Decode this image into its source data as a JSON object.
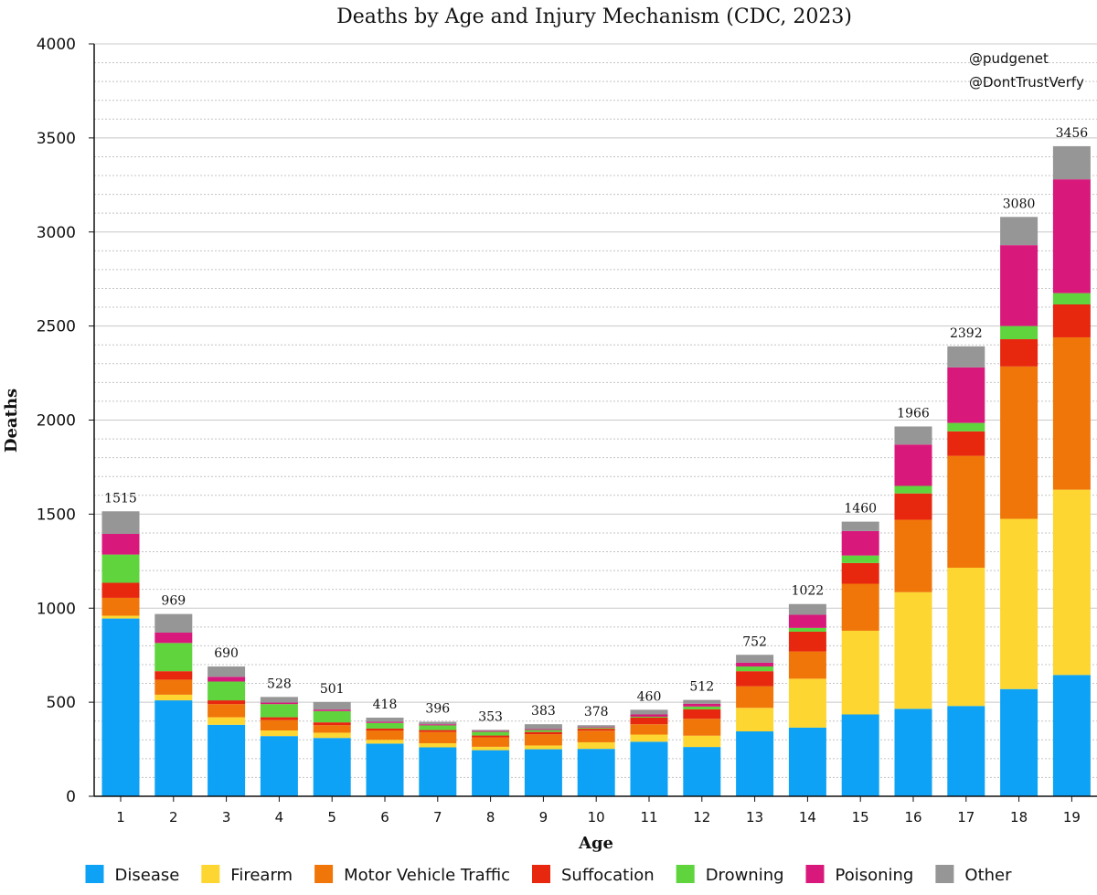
{
  "chart_data": {
    "type": "bar",
    "stacked": true,
    "title": "Deaths by Age and Injury Mechanism (CDC, 2023)",
    "xlabel": "Age",
    "ylabel": "Deaths",
    "ylim": [
      0,
      4000
    ],
    "yticks": [
      0,
      500,
      1000,
      1500,
      2000,
      2500,
      3000,
      3500,
      4000
    ],
    "grid": true,
    "legend_position": "bottom",
    "categories": [
      "1",
      "2",
      "3",
      "4",
      "5",
      "6",
      "7",
      "8",
      "9",
      "10",
      "11",
      "12",
      "13",
      "14",
      "15",
      "16",
      "17",
      "18",
      "19"
    ],
    "totals": [
      1515,
      969,
      690,
      528,
      501,
      418,
      396,
      353,
      383,
      378,
      460,
      512,
      752,
      1022,
      1460,
      1966,
      2392,
      3080,
      3456
    ],
    "series": [
      {
        "name": "Disease",
        "color": "#0da2f5",
        "values": [
          945,
          510,
          380,
          320,
          310,
          280,
          260,
          245,
          250,
          252,
          290,
          262,
          345,
          365,
          435,
          465,
          480,
          570,
          645
        ]
      },
      {
        "name": "Firearm",
        "color": "#fdd631",
        "values": [
          15,
          30,
          40,
          30,
          28,
          20,
          22,
          18,
          20,
          35,
          38,
          60,
          125,
          260,
          445,
          620,
          735,
          905,
          985
        ]
      },
      {
        "name": "Motor Vehicle Traffic",
        "color": "#f0760a",
        "values": [
          95,
          80,
          70,
          55,
          40,
          50,
          60,
          50,
          60,
          62,
          55,
          90,
          115,
          145,
          250,
          385,
          595,
          810,
          810
        ]
      },
      {
        "name": "Suffocation",
        "color": "#e8270f",
        "values": [
          80,
          45,
          20,
          15,
          15,
          10,
          10,
          10,
          12,
          10,
          35,
          50,
          80,
          105,
          110,
          140,
          130,
          145,
          175
        ]
      },
      {
        "name": "Drowning",
        "color": "#5fd43c",
        "values": [
          150,
          150,
          100,
          70,
          60,
          30,
          25,
          20,
          10,
          5,
          5,
          15,
          25,
          20,
          40,
          40,
          45,
          70,
          60
        ]
      },
      {
        "name": "Poisoning",
        "color": "#d8197b",
        "values": [
          110,
          55,
          25,
          8,
          8,
          6,
          6,
          5,
          5,
          4,
          12,
          15,
          20,
          70,
          130,
          220,
          295,
          430,
          605
        ]
      },
      {
        "name": "Other",
        "color": "#969696",
        "values": [
          120,
          99,
          55,
          30,
          40,
          22,
          13,
          5,
          26,
          10,
          25,
          20,
          42,
          57,
          50,
          96,
          112,
          150,
          176
        ]
      }
    ],
    "annotations": [
      "@pudgenet",
      "@DontTrustVerfy"
    ]
  }
}
